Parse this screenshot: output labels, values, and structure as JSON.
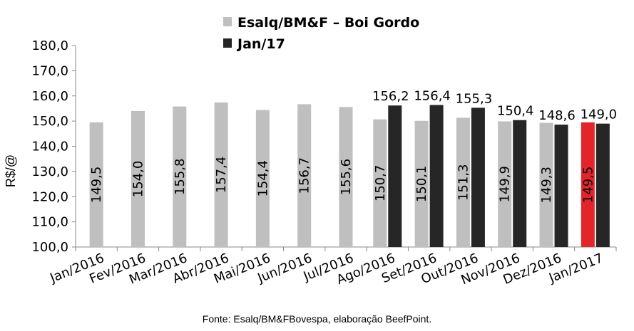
{
  "chart_data": {
    "type": "bar",
    "title": "",
    "ylabel": "R$/@",
    "xlabel": "",
    "ylim": [
      100,
      180
    ],
    "yticks": [
      "100,0",
      "110,0",
      "120,0",
      "130,0",
      "140,0",
      "150,0",
      "160,0",
      "170,0",
      "180,0"
    ],
    "ytick_values": [
      100,
      110,
      120,
      130,
      140,
      150,
      160,
      170,
      180
    ],
    "categories": [
      "Jan/2016",
      "Fev/2016",
      "Mar/2016",
      "Abr/2016",
      "Mai/2016",
      "Jun/2016",
      "Jul/2016",
      "Ago/2016",
      "Set/2016",
      "Out/2016",
      "Nov/2016",
      "Dez/2016",
      "Jan/2017"
    ],
    "series": [
      {
        "name": "Esalq/BM&F – Boi Gordo",
        "color": "#bfbfbf",
        "values": [
          149.5,
          154.0,
          155.8,
          157.4,
          154.4,
          156.7,
          155.6,
          150.7,
          150.1,
          151.3,
          149.9,
          149.3,
          149.5
        ],
        "labels": [
          "149,5",
          "154,0",
          "155,8",
          "157,4",
          "154,4",
          "156,7",
          "155,6",
          "150,7",
          "150,1",
          "151,3",
          "149,9",
          "149,3",
          "149,5"
        ],
        "highlight": {
          "index": 12,
          "color": "#e3242b"
        }
      },
      {
        "name": "Jan/17",
        "color": "#262626",
        "values": [
          null,
          null,
          null,
          null,
          null,
          null,
          null,
          156.2,
          156.4,
          155.3,
          150.4,
          148.6,
          149.0
        ],
        "labels": [
          null,
          null,
          null,
          null,
          null,
          null,
          null,
          "156,2",
          "156,4",
          "155,3",
          "150,4",
          "148,6",
          "149,0"
        ]
      }
    ],
    "legend_position": "top",
    "grid": false
  },
  "footer": {
    "source": "Fonte: Esalq/BM&FBovespa, elaboração BeefPoint."
  }
}
